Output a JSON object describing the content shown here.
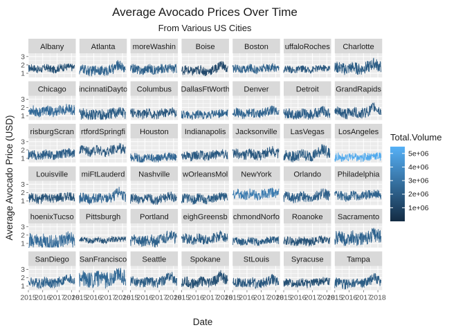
{
  "chart_data": {
    "type": "line",
    "title": "Average Avocado Prices Over Time",
    "subtitle": "From Various US Cities",
    "xlabel": "Date",
    "ylabel": "Average Avocado Price (USD)",
    "x_ticks": [
      "2015",
      "2016",
      "2017",
      "2018"
    ],
    "xlim": [
      2015,
      2018.3
    ],
    "y_ticks": [
      "1",
      "2",
      "3"
    ],
    "ylim": [
      0.5,
      3.4
    ],
    "grid": true,
    "facets": [
      {
        "name": "Albany",
        "strip_label": "Albany",
        "base": 1.55,
        "vol": 1.5,
        "band": 0.45,
        "peak_2017": 0.35
      },
      {
        "name": "Atlanta",
        "strip_label": "Atlanta",
        "base": 1.35,
        "vol": 2.3,
        "band": 0.6,
        "peak_2017": 0.8
      },
      {
        "name": "BaltimoreWashington",
        "strip_label": "moreWashin",
        "base": 1.45,
        "vol": 2.2,
        "band": 0.55,
        "peak_2017": 0.3
      },
      {
        "name": "Boise",
        "strip_label": "Boise",
        "base": 1.3,
        "vol": 1.2,
        "band": 0.55,
        "peak_2017": 0.9
      },
      {
        "name": "Boston",
        "strip_label": "Boston",
        "base": 1.5,
        "vol": 2.2,
        "band": 0.5,
        "peak_2017": 0.35
      },
      {
        "name": "BuffaloRochester",
        "strip_label": "uffaloRoches",
        "base": 1.45,
        "vol": 1.8,
        "band": 0.4,
        "peak_2017": 0.3
      },
      {
        "name": "Charlotte",
        "strip_label": "Charlotte",
        "base": 1.6,
        "vol": 2.0,
        "band": 0.7,
        "peak_2017": 0.7
      },
      {
        "name": "Chicago",
        "strip_label": "Chicago",
        "base": 1.55,
        "vol": 2.6,
        "band": 0.6,
        "peak_2017": 0.4
      },
      {
        "name": "CincinnatiDayton",
        "strip_label": "incinnatiDayto",
        "base": 1.15,
        "vol": 2.0,
        "band": 0.7,
        "peak_2017": 0.5
      },
      {
        "name": "Columbus",
        "strip_label": "Columbus",
        "base": 1.25,
        "vol": 1.8,
        "band": 0.55,
        "peak_2017": 0.4
      },
      {
        "name": "DallasFtWorth",
        "strip_label": "DallasFtWorth",
        "base": 1.1,
        "vol": 2.3,
        "band": 0.5,
        "peak_2017": 0.3
      },
      {
        "name": "Denver",
        "strip_label": "Denver",
        "base": 1.3,
        "vol": 2.3,
        "band": 0.55,
        "peak_2017": 0.5
      },
      {
        "name": "Detroit",
        "strip_label": "Detroit",
        "base": 1.2,
        "vol": 2.1,
        "band": 0.6,
        "peak_2017": 0.5
      },
      {
        "name": "GrandRapids",
        "strip_label": "GrandRapids",
        "base": 1.35,
        "vol": 1.9,
        "band": 0.65,
        "peak_2017": 0.8
      },
      {
        "name": "HarrisburgScranton",
        "strip_label": "risburgScran",
        "base": 1.4,
        "vol": 2.1,
        "band": 0.55,
        "peak_2017": 0.4
      },
      {
        "name": "HartfordSpringfield",
        "strip_label": "rtfordSpringfi",
        "base": 1.85,
        "vol": 1.8,
        "band": 0.6,
        "peak_2017": 0.5
      },
      {
        "name": "Houston",
        "strip_label": "Houston",
        "base": 1.05,
        "vol": 2.4,
        "band": 0.5,
        "peak_2017": 0.3
      },
      {
        "name": "Indianapolis",
        "strip_label": "Indianapolis",
        "base": 1.3,
        "vol": 1.9,
        "band": 0.55,
        "peak_2017": 0.4
      },
      {
        "name": "Jacksonville",
        "strip_label": "Jacksonville",
        "base": 1.45,
        "vol": 1.8,
        "band": 0.6,
        "peak_2017": 0.6
      },
      {
        "name": "LasVegas",
        "strip_label": "LasVegas",
        "base": 1.3,
        "vol": 2.0,
        "band": 0.7,
        "peak_2017": 1.0
      },
      {
        "name": "LosAngeles",
        "strip_label": "LosAngeles",
        "base": 1.1,
        "vol": 5.2,
        "band": 0.5,
        "peak_2017": 0.4
      },
      {
        "name": "Louisville",
        "strip_label": "Louisville",
        "base": 1.3,
        "vol": 1.6,
        "band": 0.55,
        "peak_2017": 0.4
      },
      {
        "name": "MiamiFtLauderdale",
        "strip_label": "miFtLauderd",
        "base": 1.3,
        "vol": 2.4,
        "band": 0.6,
        "peak_2017": 0.9
      },
      {
        "name": "Nashville",
        "strip_label": "Nashville",
        "base": 1.2,
        "vol": 1.9,
        "band": 0.55,
        "peak_2017": 0.5
      },
      {
        "name": "NewOrleansMobile",
        "strip_label": "wOrleansMol",
        "base": 1.25,
        "vol": 2.0,
        "band": 0.55,
        "peak_2017": 0.5
      },
      {
        "name": "NewYork",
        "strip_label": "NewYork",
        "base": 1.75,
        "vol": 3.3,
        "band": 0.6,
        "peak_2017": 0.4
      },
      {
        "name": "Orlando",
        "strip_label": "Orlando",
        "base": 1.45,
        "vol": 2.1,
        "band": 0.6,
        "peak_2017": 0.6
      },
      {
        "name": "Philadelphia",
        "strip_label": "Philadelphia",
        "base": 1.6,
        "vol": 2.3,
        "band": 0.55,
        "peak_2017": 0.4
      },
      {
        "name": "PhoenixTucson",
        "strip_label": "hoenixTucso",
        "base": 1.2,
        "vol": 2.6,
        "band": 0.95,
        "peak_2017": 0.6
      },
      {
        "name": "Pittsburgh",
        "strip_label": "Pittsburgh",
        "base": 1.4,
        "vol": 1.6,
        "band": 0.35,
        "peak_2017": 0.2
      },
      {
        "name": "Portland",
        "strip_label": "Portland",
        "base": 1.35,
        "vol": 2.2,
        "band": 0.7,
        "peak_2017": 0.9
      },
      {
        "name": "RaleighGreensboro",
        "strip_label": "eighGreensb",
        "base": 1.5,
        "vol": 2.0,
        "band": 0.6,
        "peak_2017": 0.6
      },
      {
        "name": "RichmondNorfolk",
        "strip_label": "chmondNorfo",
        "base": 1.25,
        "vol": 2.0,
        "band": 0.45,
        "peak_2017": 0.3
      },
      {
        "name": "Roanoke",
        "strip_label": "Roanoke",
        "base": 1.25,
        "vol": 1.6,
        "band": 0.5,
        "peak_2017": 0.4
      },
      {
        "name": "Sacramento",
        "strip_label": "Sacramento",
        "base": 1.6,
        "vol": 2.3,
        "band": 0.85,
        "peak_2017": 0.6
      },
      {
        "name": "SanDiego",
        "strip_label": "SanDiego",
        "base": 1.4,
        "vol": 2.3,
        "band": 0.6,
        "peak_2017": 0.7
      },
      {
        "name": "SanFrancisco",
        "strip_label": "SanFrancisco",
        "base": 1.75,
        "vol": 2.5,
        "band": 0.95,
        "peak_2017": 0.9
      },
      {
        "name": "Seattle",
        "strip_label": "Seattle",
        "base": 1.45,
        "vol": 2.0,
        "band": 0.6,
        "peak_2017": 0.9
      },
      {
        "name": "Spokane",
        "strip_label": "Spokane",
        "base": 1.45,
        "vol": 1.5,
        "band": 0.65,
        "peak_2017": 0.9
      },
      {
        "name": "StLouis",
        "strip_label": "StLouis",
        "base": 1.35,
        "vol": 1.8,
        "band": 0.6,
        "peak_2017": 0.6
      },
      {
        "name": "Syracuse",
        "strip_label": "Syracuse",
        "base": 1.35,
        "vol": 1.5,
        "band": 0.5,
        "peak_2017": 0.4
      },
      {
        "name": "Tampa",
        "strip_label": "Tampa",
        "base": 1.3,
        "vol": 2.0,
        "band": 0.6,
        "peak_2017": 0.9
      }
    ],
    "legend": {
      "title": "Total.Volume",
      "placement": "right",
      "labels": [
        "1e+06",
        "2e+06",
        "3e+06",
        "4e+06",
        "5e+06"
      ],
      "values": [
        1000000,
        2000000,
        3000000,
        4000000,
        5000000
      ],
      "range": [
        0,
        5500000
      ],
      "color_low": "#132B43",
      "color_high": "#56B1F7"
    },
    "panel_background": "#EBEBEB",
    "strip_background": "#D9D9D9",
    "grid_color": "#FFFFFF"
  }
}
